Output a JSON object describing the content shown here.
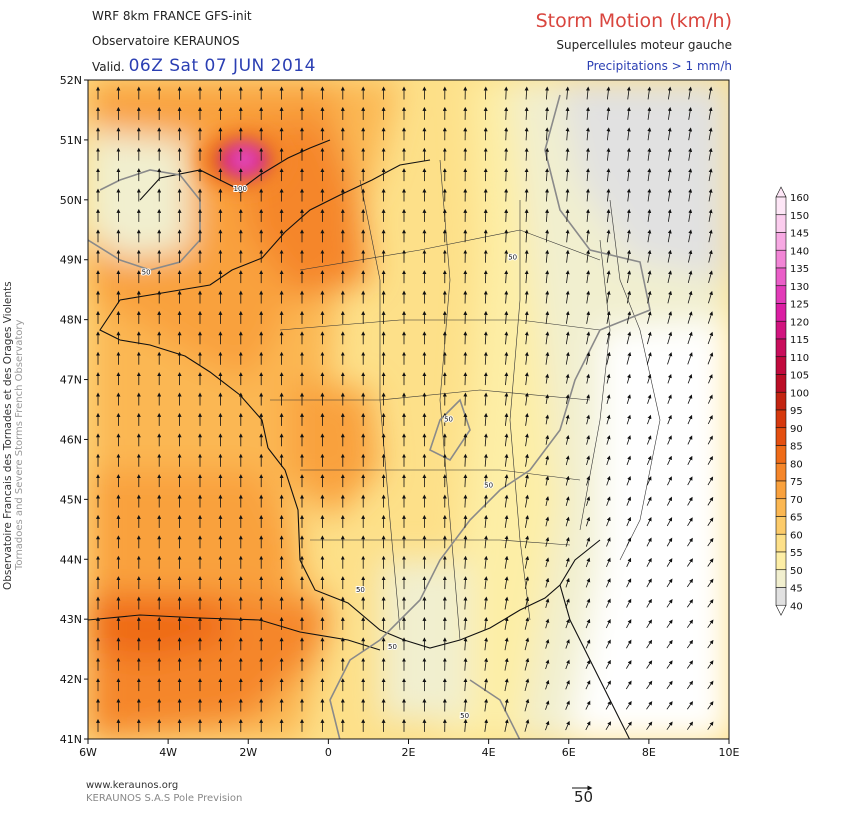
{
  "header": {
    "model_line": "WRF 8km FRANCE   GFS-init",
    "organisation": "Observatoire KERAUNOS",
    "valid_prefix": "Valid.",
    "valid_date": "06Z Sat 07 JUN 2014",
    "product_title": "Storm Motion (km/h)",
    "product_subtitle": "Supercellules moteur gauche",
    "precip_note": "Precipitations > 1 mm/h"
  },
  "side_credit": {
    "line1": "Observatoire Francais des Tornades et des Orages Violents",
    "line2": "Tornadoes and Severe Storms French Observatory"
  },
  "map": {
    "lat_labels": [
      "52N",
      "51N",
      "50N",
      "49N",
      "48N",
      "47N",
      "46N",
      "45N",
      "44N",
      "43N",
      "42N",
      "41N"
    ],
    "lon_labels": [
      "6W",
      "4W",
      "2W",
      "0",
      "2E",
      "4E",
      "6E",
      "8E",
      "10E"
    ],
    "contour_labels": [
      {
        "text": "100",
        "lon": -2.2,
        "lat": 50.15
      },
      {
        "text": "50",
        "lon": -4.55,
        "lat": 48.75
      },
      {
        "text": "50",
        "lon": 4.6,
        "lat": 49.0
      },
      {
        "text": "50",
        "lon": 3.0,
        "lat": 46.3
      },
      {
        "text": "50",
        "lon": 4.0,
        "lat": 45.2
      },
      {
        "text": "50",
        "lon": 0.8,
        "lat": 43.45
      },
      {
        "text": "50",
        "lon": 1.6,
        "lat": 42.5
      },
      {
        "text": "50",
        "lon": 3.4,
        "lat": 41.35
      }
    ],
    "wind_reference": "50"
  },
  "legend": {
    "values": [
      "160",
      "150",
      "145",
      "140",
      "135",
      "130",
      "125",
      "120",
      "115",
      "110",
      "105",
      "100",
      "95",
      "90",
      "85",
      "80",
      "75",
      "70",
      "65",
      "60",
      "55",
      "50",
      "45",
      "40"
    ],
    "colors": [
      "#fde6f6",
      "#fbcdee",
      "#f7a9e3",
      "#f285d6",
      "#ea5ec8",
      "#e23bb8",
      "#db1ea3",
      "#d2147f",
      "#c90e5c",
      "#c10a3d",
      "#bb0e26",
      "#c32411",
      "#d6390e",
      "#e44f10",
      "#ef6b18",
      "#f5862a",
      "#f9a13d",
      "#fbb752",
      "#fccb6a",
      "#fde089",
      "#fdeea6",
      "#f1efcf",
      "#e1e1e1",
      "#ffffff"
    ]
  },
  "footer": {
    "website": "www.keraunos.org",
    "company": "KERAUNOS S.A.S Pole Prevision"
  }
}
